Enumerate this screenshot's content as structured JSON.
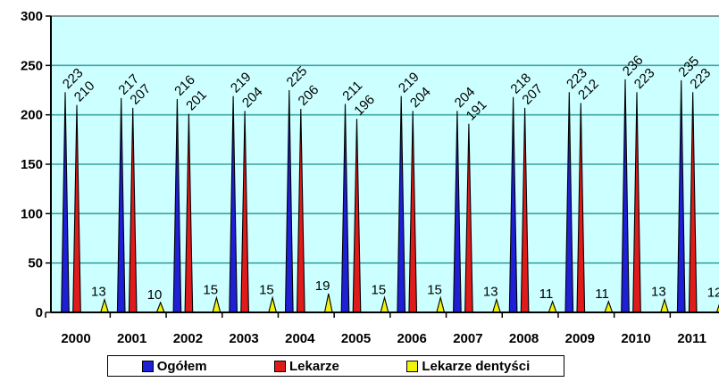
{
  "chart_data": {
    "type": "bar",
    "categories": [
      "2000",
      "2001",
      "2002",
      "2003",
      "2004",
      "2005",
      "2006",
      "2007",
      "2008",
      "2009",
      "2010",
      "2011"
    ],
    "series": [
      {
        "name": "Ogółem",
        "color": "#1f1fd6",
        "values": [
          223,
          217,
          216,
          219,
          225,
          211,
          219,
          204,
          218,
          223,
          236,
          235
        ]
      },
      {
        "name": "Lekarze",
        "color": "#e01b1b",
        "values": [
          210,
          207,
          201,
          204,
          206,
          196,
          204,
          191,
          207,
          212,
          223,
          223
        ]
      },
      {
        "name": "Lekarze dentyści",
        "color": "#f2f20a",
        "values": [
          13,
          10,
          15,
          15,
          19,
          15,
          15,
          13,
          11,
          11,
          13,
          12
        ]
      }
    ],
    "yticks": [
      "0",
      "50",
      "100",
      "150",
      "200",
      "250",
      "300"
    ],
    "ylim": [
      0,
      300
    ],
    "grid": true,
    "plot_background": "#ccffff",
    "legend_position": "bottom"
  }
}
